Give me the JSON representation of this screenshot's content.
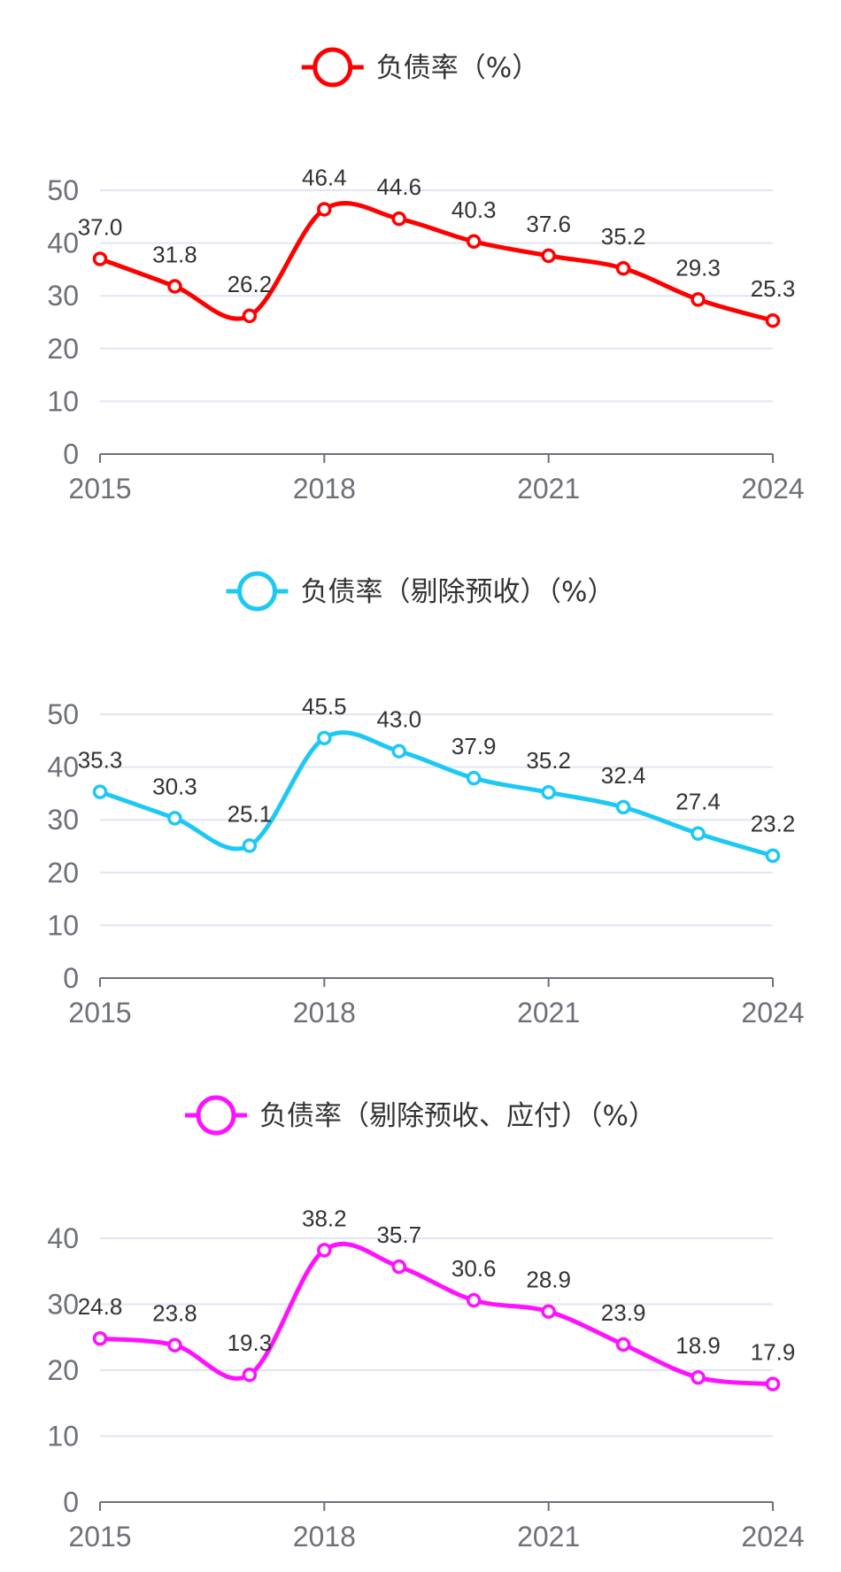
{
  "chart_data": [
    {
      "type": "line",
      "legend": "负债率（%）",
      "color": "#ff0000",
      "x": [
        2015,
        2016,
        2017,
        2018,
        2019,
        2020,
        2021,
        2022,
        2023,
        2024
      ],
      "xticks": [
        "2015",
        "2018",
        "2021",
        "2024"
      ],
      "values": [
        37.0,
        31.8,
        26.2,
        46.4,
        44.6,
        40.3,
        37.6,
        35.2,
        29.3,
        25.3
      ],
      "labels": [
        "37.0",
        "31.8",
        "26.2",
        "46.4",
        "44.6",
        "40.3",
        "37.6",
        "35.2",
        "29.3",
        "25.3"
      ],
      "ylim": [
        0,
        50
      ],
      "yticks": [
        0,
        10,
        20,
        30,
        40,
        50
      ],
      "legend_position": "top-center",
      "grid": true
    },
    {
      "type": "line",
      "legend": "负债率（剔除预收）（%）",
      "color": "#1ec8f5",
      "x": [
        2015,
        2016,
        2017,
        2018,
        2019,
        2020,
        2021,
        2022,
        2023,
        2024
      ],
      "xticks": [
        "2015",
        "2018",
        "2021",
        "2024"
      ],
      "values": [
        35.3,
        30.3,
        25.1,
        45.5,
        43.0,
        37.9,
        35.2,
        32.4,
        27.4,
        23.2
      ],
      "labels": [
        "35.3",
        "30.3",
        "25.1",
        "45.5",
        "43.0",
        "37.9",
        "35.2",
        "32.4",
        "27.4",
        "23.2"
      ],
      "ylim": [
        0,
        50
      ],
      "yticks": [
        0,
        10,
        20,
        30,
        40,
        50
      ],
      "legend_position": "top-center",
      "grid": true
    },
    {
      "type": "line",
      "legend": "负债率（剔除预收、应付）（%）",
      "color": "#ff11ff",
      "x": [
        2015,
        2016,
        2017,
        2018,
        2019,
        2020,
        2021,
        2022,
        2023,
        2024
      ],
      "xticks": [
        "2015",
        "2018",
        "2021",
        "2024"
      ],
      "values": [
        24.8,
        23.8,
        19.3,
        38.2,
        35.7,
        30.6,
        28.9,
        23.9,
        18.9,
        17.9
      ],
      "labels": [
        "24.8",
        "23.8",
        "19.3",
        "38.2",
        "35.7",
        "30.6",
        "28.9",
        "23.9",
        "18.9",
        "17.9"
      ],
      "ylim": [
        0,
        40
      ],
      "yticks": [
        0,
        10,
        20,
        30,
        40
      ],
      "legend_position": "top-center",
      "grid": true
    }
  ]
}
